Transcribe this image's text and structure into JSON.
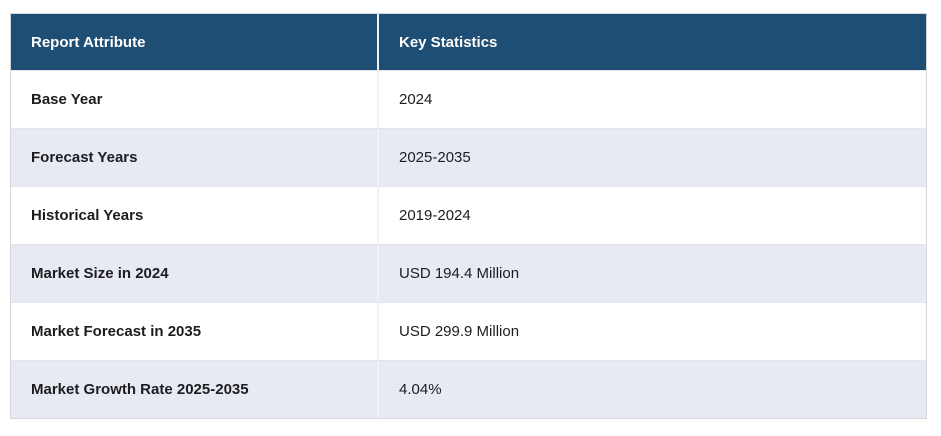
{
  "chart_data": {
    "type": "table",
    "columns": [
      "Report Attribute",
      "Key Statistics"
    ],
    "rows": [
      [
        "Base Year",
        "2024"
      ],
      [
        "Forecast Years",
        "2025-2035"
      ],
      [
        "Historical Years",
        "2019-2024"
      ],
      [
        "Market Size in 2024",
        "USD 194.4 Million"
      ],
      [
        "Market Forecast in 2035",
        "USD 299.9 Million"
      ],
      [
        "Market Growth Rate 2025-2035",
        "4.04%"
      ]
    ]
  },
  "colors": {
    "header_bg": "#1f4e74",
    "header_text": "#ffffff",
    "row_bg": "#ffffff",
    "row_alt_bg": "#e7e9f3",
    "body_text": "#1d1d1f",
    "column_divider": "#f2f2f4",
    "row_border": "#e2e3ec",
    "outer_border": "#d8d8d8"
  }
}
